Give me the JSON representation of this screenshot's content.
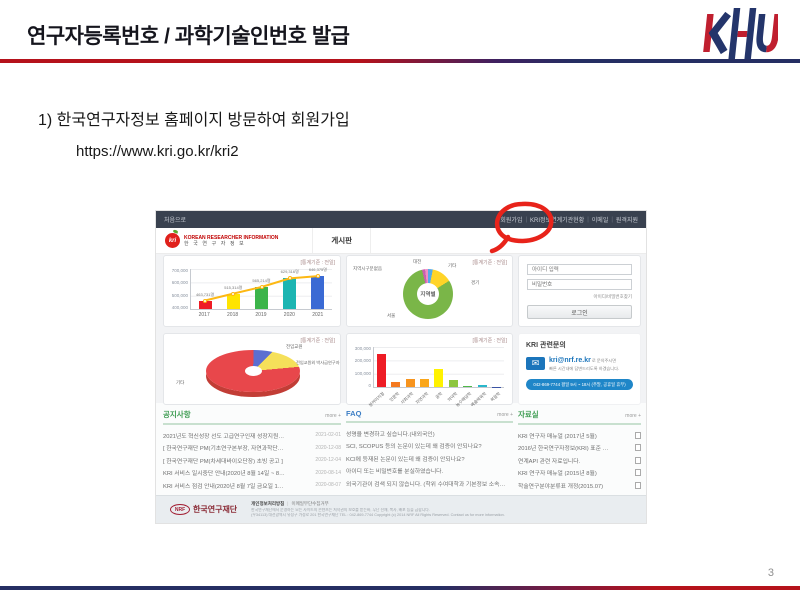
{
  "slide": {
    "title": "연구자등록번호 / 과학기술인번호 발급",
    "logo": "KHU",
    "step1": "1) 한국연구자정보 홈페이지 방문하여 회원가입",
    "url": "https://www.kri.go.kr/kri2",
    "page_number": "3",
    "accent_navy": "#252e63",
    "accent_red": "#b5121b",
    "annotation_color": "#e8231a"
  },
  "site": {
    "topbar": {
      "home": "처음으로",
      "menu": [
        "회원가입",
        "KRI정보연계기관현황",
        "이메일",
        "원격지원"
      ]
    },
    "header": {
      "logo_abbr": "kri",
      "brand_en": "KOREAN RESEARCHER INFORMATION",
      "brand_ko": "한 국 연 구 자 정 보",
      "nav": [
        "게시판"
      ]
    },
    "stat_label": "[통계기준 : 전일]",
    "login": {
      "id_placeholder": "아이디 입력",
      "pw_placeholder": "비밀번호",
      "find_link": "아이디/비밀번호찾기",
      "login_button": "로그인"
    },
    "contact": {
      "title": "KRI 관련문의",
      "email": "kri@nrf.re.kr",
      "email_suffix": "로 문의주시면",
      "desc": "빠른 시간내에 답변드리도록 하겠습니다.",
      "phone_banner": "042-869-7744  평일 9시 ~ 18시 (주말, 공휴일 휴무)"
    },
    "boards": [
      {
        "title": "공지사항",
        "more": "more +",
        "items": [
          {
            "text": "2021년도 혁신성장 선도 고급연구인재 성장지원…",
            "date": "2021-02-01"
          },
          {
            "text": "[ 한국연구재단 PM(기초연구본부장, 자연과학단…",
            "date": "2020-12-08"
          },
          {
            "text": "[ 한국연구재단 PM(차세대바이오단장) 초빙 공고 ]",
            "date": "2020-12-04"
          },
          {
            "text": "KRI 서비스 일시중단 안내(2020년 8월 14일 ~ 8…",
            "date": "2020-08-14"
          },
          {
            "text": "KRI 서비스 점검 안내(2020년 8월 7일 금요일 1…",
            "date": "2020-08-07"
          }
        ]
      },
      {
        "title": "FAQ",
        "more": "more +",
        "items": [
          {
            "text": "성명을 변경하고 싶습니다.(내외국인)"
          },
          {
            "text": "SCI, SCOPUS 등의 논문이 있는데 왜 검증이 안되나요?"
          },
          {
            "text": "KCI에 등재된 논문이 있는데 왜 검증이 안되나요?"
          },
          {
            "text": "아이디 또는 비밀번호를 분실하였습니다."
          },
          {
            "text": "외국기관이 검색 되지 않습니다. (학위 수여대학과 기본정보 소속…"
          }
        ]
      },
      {
        "title": "자료실",
        "more": "more +",
        "items": [
          {
            "text": "KRI 연구자 매뉴얼 (2017년 5월)",
            "icon": true
          },
          {
            "text": "2016년 한국연구자정보(KRI) 표준 …",
            "icon": true
          },
          {
            "text": "연계API 관련 자료입니다.",
            "icon": true
          },
          {
            "text": "KRI 연구자 매뉴얼 (2015년 8월)",
            "icon": true
          },
          {
            "text": "학술연구분야분류표 개정(2015.07)",
            "icon": true
          }
        ]
      }
    ],
    "footer": {
      "logo_abbr": "NRF",
      "brand": "한국연구재단",
      "links": [
        "개인정보처리방침",
        "이메일무단수집거부"
      ],
      "line1": "한국연구재단에서 운영하는 모든 사이트의 콘텐츠는 저작권의 보호를 받는바, 무단 전재, 복사, 배포 등을 금합니다.",
      "line2": "(우34113) 대전광역시 유성구 가정로 201 한국연구재단 TEL : 042-869-7744 Copyright (c) 2014 NRF All Rights Reserved. Contact us for more information."
    }
  },
  "chart_data": [
    {
      "type": "bar",
      "name": "연도별 등록 연구자 수",
      "categories": [
        "2017",
        "2018",
        "2019",
        "2020",
        "2021"
      ],
      "values": [
        463731,
        515314,
        565214,
        629316,
        646375
      ],
      "value_labels": [
        "463,731명",
        "515,314명",
        "565,214명",
        "629,316명",
        "646,375명"
      ],
      "colors": [
        "#ee1c25",
        "#ffe400",
        "#3cb44a",
        "#1cb5b2",
        "#3a6ad4"
      ],
      "line_color": "#fdb813",
      "ylim": [
        400000,
        700000
      ],
      "yticks": [
        "700,000",
        "600,000",
        "500,000",
        "400,000"
      ],
      "stat_basis": "[통계기준 : 전일]"
    },
    {
      "type": "pie",
      "name": "지역별 등록 연구자",
      "center_label": "지역별",
      "slices": [
        {
          "label": "지역시구분없음",
          "value": 2,
          "color": "#c95fb0"
        },
        {
          "label": "대전",
          "value": 2,
          "color": "#f08fc4"
        },
        {
          "label": "기타",
          "value": 3,
          "color": "#55a9e8"
        },
        {
          "label": "경기",
          "value": 13,
          "color": "#ffd428"
        },
        {
          "label": "서울",
          "value": 80,
          "color": "#7ab648"
        }
      ],
      "stat_basis": "[통계기준 : 전일]"
    },
    {
      "type": "pie",
      "style": "3d",
      "name": "연구자 구분",
      "slices": [
        {
          "label": "전임교원",
          "value": 12,
          "color": "#5b6ed0"
        },
        {
          "label": "전임교원외 박사급연구자",
          "value": 11,
          "color": "#f5e05a"
        },
        {
          "label": "기타",
          "value": 77,
          "color": "#e8474b"
        }
      ],
      "stat_basis": "[통계기준 : 전일]"
    },
    {
      "type": "bar",
      "name": "학문분야별 등록 연구자",
      "categories": [
        "분야미지정",
        "인문학",
        "사회과학",
        "자연과학",
        "공학",
        "의약학",
        "농수해양학",
        "예술체육학",
        "복합학"
      ],
      "values": [
        245000,
        35000,
        60000,
        60000,
        135000,
        50000,
        8000,
        18000,
        3000
      ],
      "colors": [
        "#ee1c25",
        "#f47920",
        "#f7941e",
        "#faa61a",
        "#fff200",
        "#8dc63f",
        "#50b848",
        "#29b7cb",
        "#3a53a4"
      ],
      "ylim": [
        0,
        300000
      ],
      "yticks": [
        "300,000",
        "200,000",
        "100,000",
        "0"
      ],
      "stat_basis": "[통계기준 : 전일]"
    }
  ]
}
